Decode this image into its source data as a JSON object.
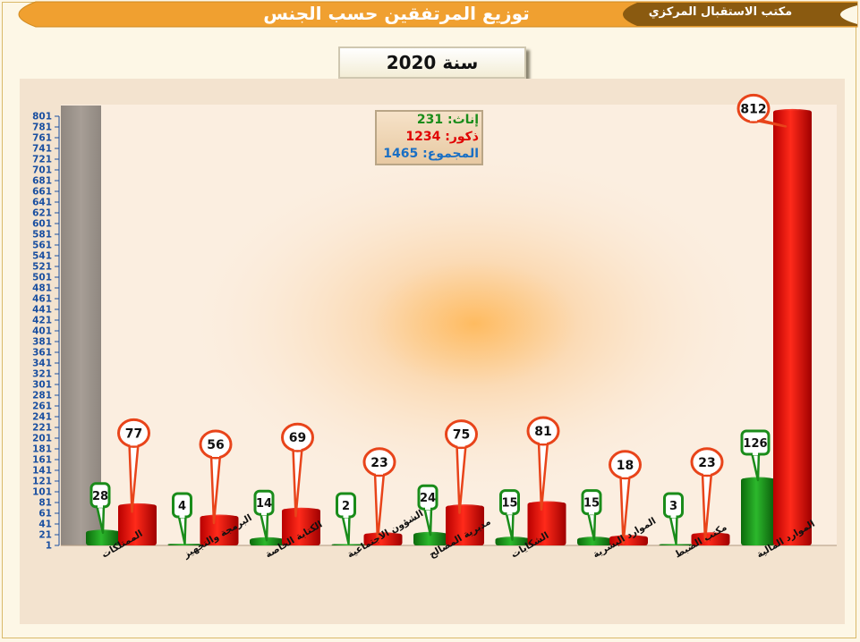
{
  "header": {
    "title": "توزيع المرتفقين حسب الجنس",
    "office": "مكتب الاستقبال المركزي",
    "colors": {
      "main_band": "#f0a030",
      "office_band": "#8a5a10"
    }
  },
  "year_label": "سنة 2020",
  "legend": {
    "female": "إناث: 231",
    "male": "ذكور:  1234",
    "total": "المجموع: 1465"
  },
  "chart_data": {
    "type": "bar",
    "categories": [
      "الممتلكات",
      "البرمجة والتجهيز",
      "الكتابة الخاصة",
      "الشؤون الاجتماعية",
      "مديرية المصالح",
      "الشكايات",
      "الموارد البشرية",
      "مكتب الضبط",
      "الموارد المالية"
    ],
    "series": [
      {
        "name": "إناث",
        "color": "#1a8c1a",
        "values": [
          28,
          4,
          14,
          2,
          24,
          15,
          15,
          3,
          126
        ]
      },
      {
        "name": "ذكور",
        "color": "#e00000",
        "values": [
          77,
          56,
          69,
          23,
          75,
          81,
          18,
          23,
          812
        ]
      }
    ],
    "ylim": [
      1,
      801
    ],
    "yticks": [
      "1",
      "21",
      "41",
      "61",
      "81",
      "101",
      "121",
      "141",
      "161",
      "181",
      "201",
      "221",
      "241",
      "261",
      "281",
      "301",
      "321",
      "341",
      "361",
      "381",
      "401",
      "421",
      "441",
      "461",
      "481",
      "501",
      "521",
      "541",
      "561",
      "581",
      "601",
      "621",
      "641",
      "661",
      "681",
      "701",
      "721",
      "741",
      "761",
      "781",
      "801"
    ],
    "xlabel": "",
    "ylabel": "",
    "grid": false,
    "legend_position": "top-center"
  }
}
